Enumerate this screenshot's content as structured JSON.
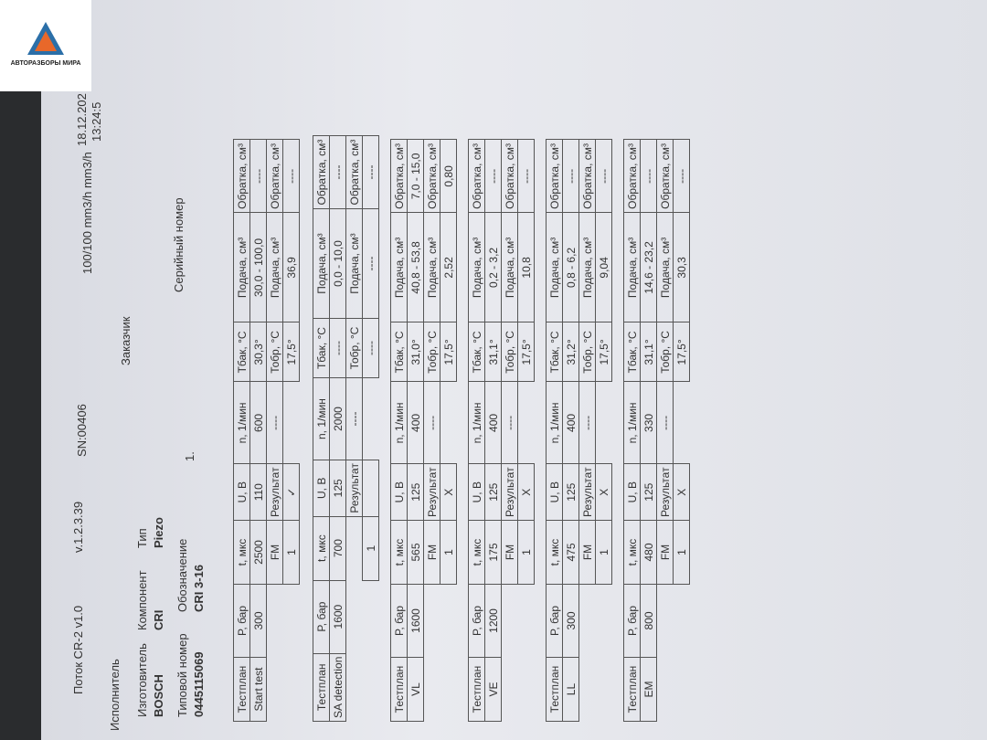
{
  "logo": "АВТОРАЗБОРЫ МИРА",
  "header": {
    "title": "Поток CR-2 v1.0",
    "version": "v.1.2.3.39",
    "serial": "SN:00406",
    "flow": "100/100 mm3/h mm3/h",
    "date": "18.12.202",
    "time": "13:24:5"
  },
  "info": {
    "performer": "Исполнитель",
    "maker_label": "Изготовитель",
    "maker": "BOSCH",
    "component_label": "Компонент",
    "component": "CRI",
    "type_label": "Тип",
    "type": "Piezo",
    "customer_label": "Заказчик",
    "serial_label": "Серийный номер",
    "serial_value": "1.",
    "part_label": "Типовой номер",
    "part": "0445115069",
    "designation_label": "Обозначение",
    "designation": "CRI 3-16"
  },
  "columns": [
    "Тестплан",
    "P, бар",
    "t, мкс",
    "U, В",
    "n, 1/мин",
    "Tбак, °C",
    "Подача, см³",
    "Обратка, см³"
  ],
  "result_columns": [
    "Результат",
    "----",
    "Тобр, °C",
    "Подача, см³",
    "Обратка, см³"
  ],
  "tests": [
    {
      "name": "Start test",
      "values": [
        "300",
        "2500",
        "110",
        "600",
        "30,3°",
        "30,0 - 100,0",
        "----"
      ],
      "fm": "FM",
      "index": "1",
      "mark": "✓",
      "result": [
        "17,5°",
        "36,9",
        "----"
      ]
    },
    {
      "name": "SA detection",
      "values": [
        "1600",
        "700",
        "125",
        "2000",
        "----",
        "0,0 - 10,0",
        "----"
      ],
      "index": "1",
      "mark": "",
      "result": [
        "----",
        "----",
        "----"
      ]
    },
    {
      "name": "VL",
      "values": [
        "1600",
        "565",
        "125",
        "400",
        "31,0°",
        "40,8 - 53,8",
        "7,0 - 15,0"
      ],
      "fm": "FM",
      "index": "1",
      "mark": "X",
      "result": [
        "17,5°",
        "2,52",
        "0,80"
      ]
    },
    {
      "name": "VE",
      "values": [
        "1200",
        "175",
        "125",
        "400",
        "31,1°",
        "0,2 - 3,2",
        "----"
      ],
      "fm": "FM",
      "index": "1",
      "mark": "X",
      "result": [
        "17,5°",
        "10,8",
        "----"
      ]
    },
    {
      "name": "LL",
      "values": [
        "300",
        "475",
        "125",
        "400",
        "31,2°",
        "0,8 - 6,2",
        "----"
      ],
      "fm": "FM",
      "index": "1",
      "mark": "X",
      "result": [
        "17,5°",
        "9,04",
        "----"
      ]
    },
    {
      "name": "EM",
      "values": [
        "800",
        "480",
        "125",
        "330",
        "31,1°",
        "14,6 - 23,2",
        "----"
      ],
      "fm": "FM",
      "index": "1",
      "mark": "X",
      "result": [
        "17,5°",
        "30,3",
        "----"
      ]
    }
  ]
}
